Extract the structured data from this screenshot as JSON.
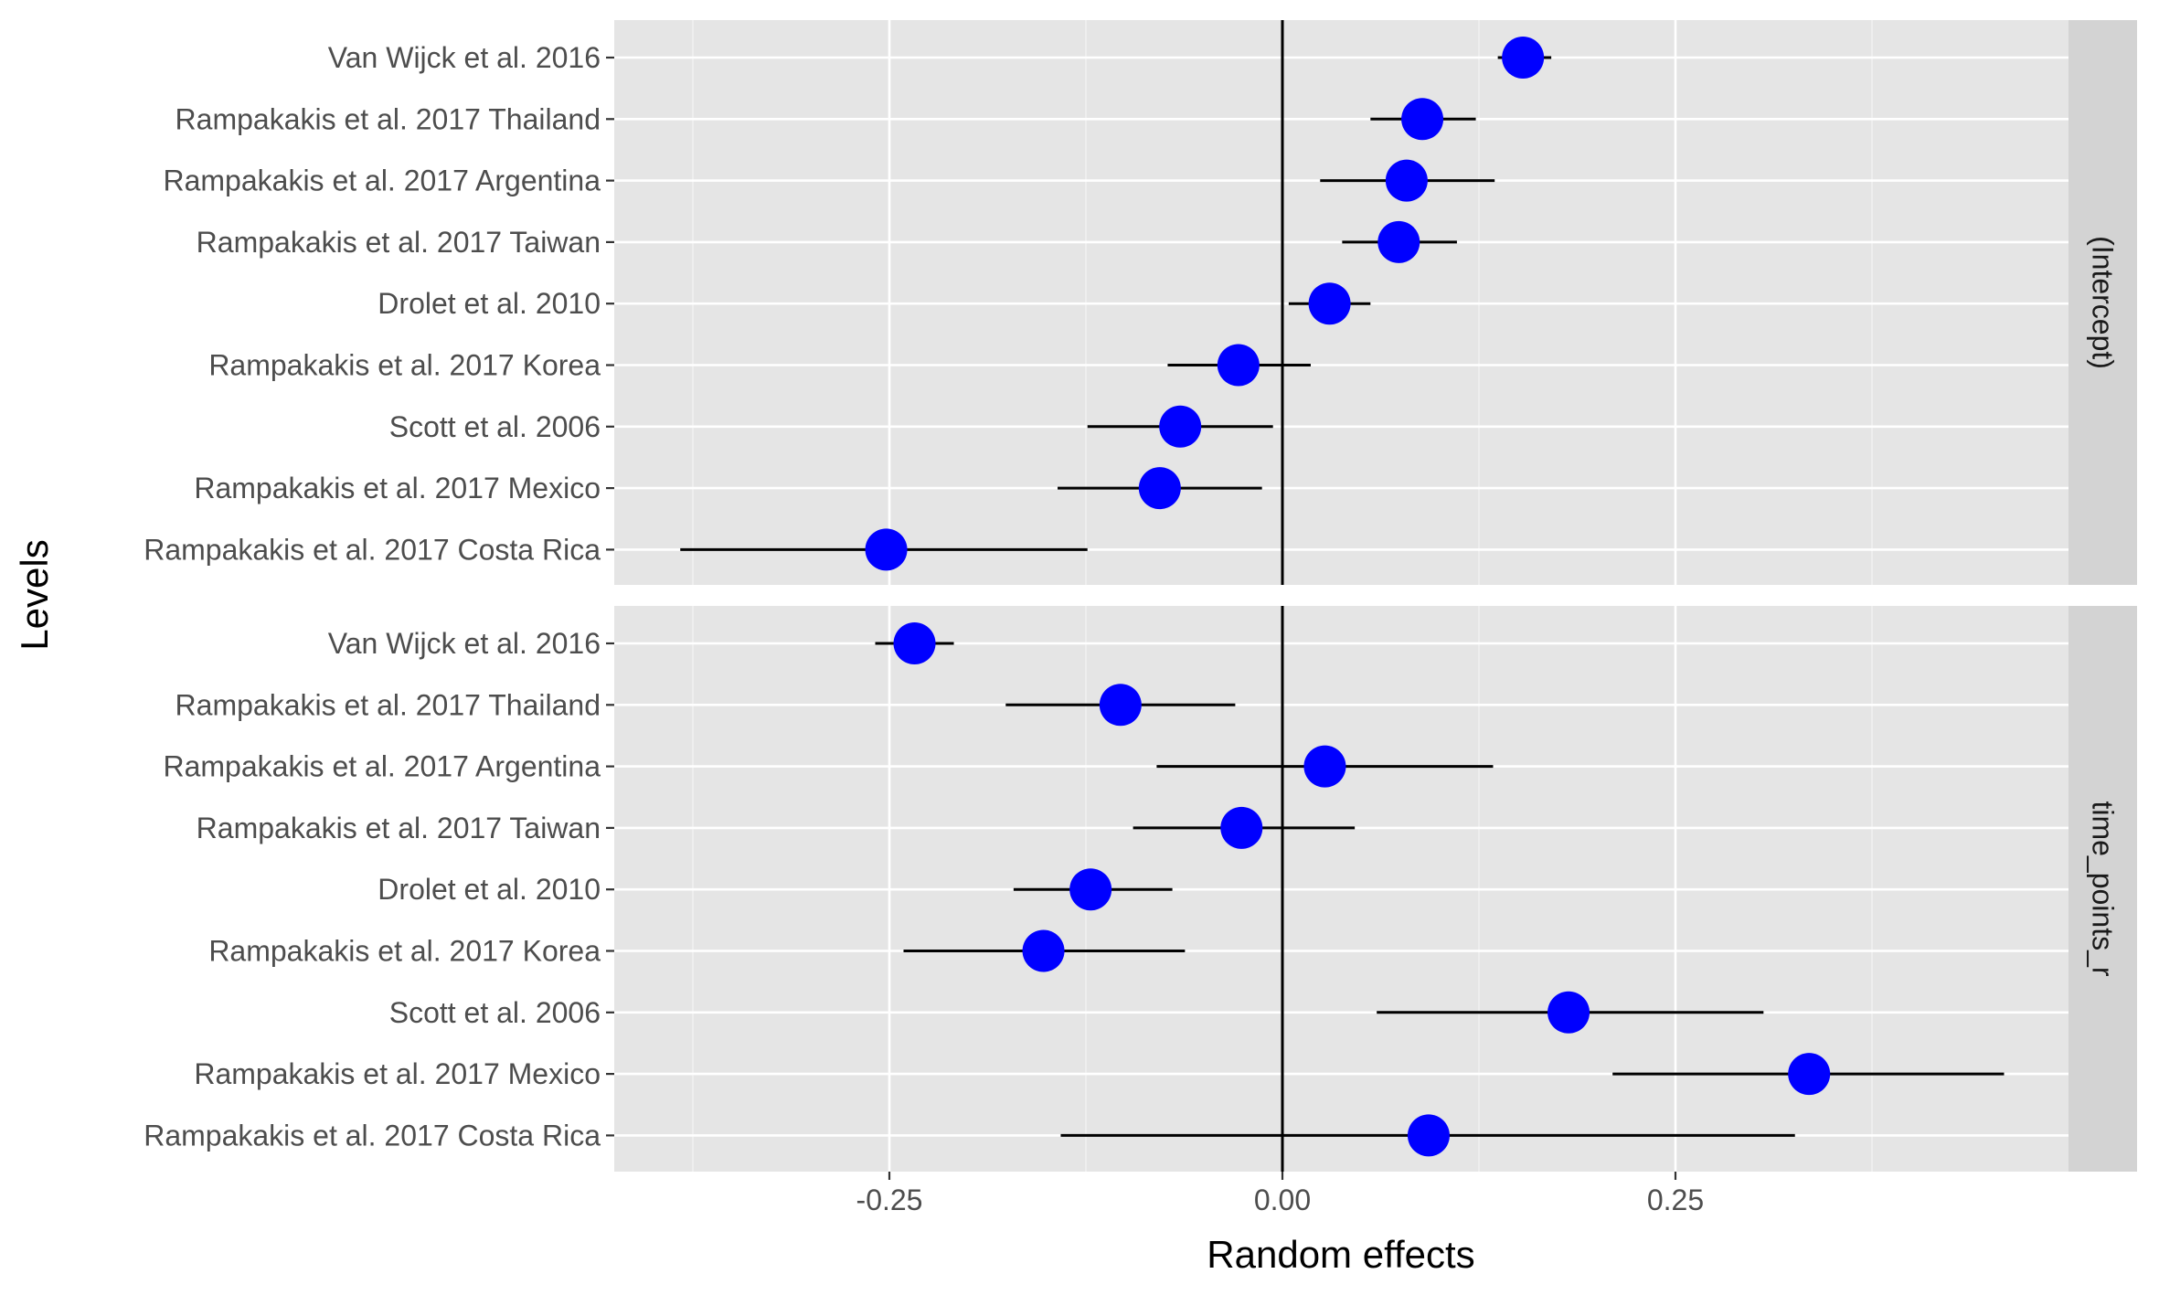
{
  "chart_data": {
    "type": "scatter",
    "subtype": "forest-plot-faceted",
    "xlabel": "Random effects",
    "ylabel": "Levels",
    "xticks": [
      -0.25,
      0.0,
      0.25
    ],
    "xtick_labels": [
      "-0.25",
      "0.00",
      "0.25"
    ],
    "xlim": [
      -0.425,
      0.5
    ],
    "reference_line_x": 0,
    "grid": true,
    "point_color": "#0000ff",
    "panel_background": "#e5e5e5",
    "strip_background": "#d3d3d3",
    "levels": [
      "Van Wijck et al. 2016",
      "Rampakakis et al. 2017 Thailand",
      "Rampakakis et al. 2017 Argentina",
      "Rampakakis et al. 2017 Taiwan",
      "Drolet et al. 2010",
      "Rampakakis et al. 2017 Korea",
      "Scott et al. 2006",
      "Rampakakis et al. 2017 Mexico",
      "Rampakakis et al. 2017 Costa Rica"
    ],
    "panels": [
      {
        "strip_label": "(Intercept)",
        "estimates": [
          0.153,
          0.089,
          0.079,
          0.074,
          0.03,
          -0.028,
          -0.065,
          -0.078,
          -0.252
        ],
        "lower": [
          0.137,
          0.056,
          0.024,
          0.038,
          0.004,
          -0.073,
          -0.124,
          -0.143,
          -0.383
        ],
        "upper": [
          0.171,
          0.123,
          0.135,
          0.111,
          0.056,
          0.018,
          -0.006,
          -0.013,
          -0.124
        ]
      },
      {
        "strip_label": "time_points_r",
        "estimates": [
          -0.234,
          -0.103,
          0.027,
          -0.026,
          -0.122,
          -0.152,
          0.182,
          0.335,
          0.093
        ],
        "lower": [
          -0.259,
          -0.176,
          -0.08,
          -0.095,
          -0.171,
          -0.241,
          0.06,
          0.21,
          -0.141
        ],
        "upper": [
          -0.209,
          -0.03,
          0.134,
          0.046,
          -0.07,
          -0.062,
          0.306,
          0.459,
          0.326
        ]
      }
    ]
  }
}
